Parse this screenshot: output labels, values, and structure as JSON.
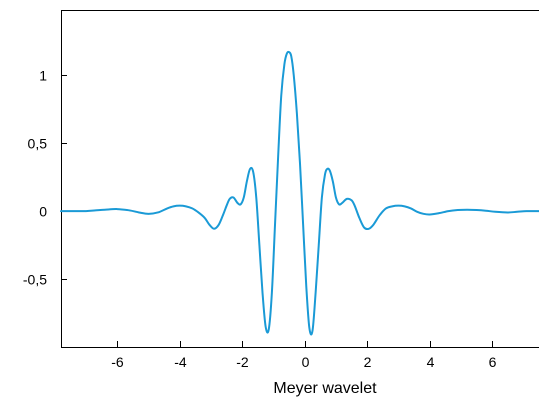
{
  "chart_data": {
    "type": "line",
    "title": "",
    "xlabel": "Meyer wavelet",
    "ylabel": "",
    "xlim": [
      -7.8,
      7.5
    ],
    "ylim": [
      -1.0,
      1.48
    ],
    "x_ticks": [
      -6,
      -4,
      -2,
      0,
      2,
      4,
      6
    ],
    "x_tick_labels": [
      "-6",
      "-4",
      "-2",
      "0",
      "2",
      "4",
      "6"
    ],
    "y_ticks": [
      -0.5,
      0,
      0.5,
      1
    ],
    "y_tick_labels": [
      "-0,5",
      "0",
      "0,5",
      "1"
    ],
    "grid": false,
    "legend": "none",
    "line_color": "#1a9ad6",
    "series": [
      {
        "x": [
          -7.8,
          -7.5,
          -7.0,
          -6.7,
          -6.4,
          -6.0,
          -5.6,
          -5.3,
          -5.0,
          -4.7,
          -4.4,
          -4.2,
          -4.0,
          -3.8,
          -3.6,
          -3.4,
          -3.2,
          -3.05,
          -2.9,
          -2.75,
          -2.6,
          -2.5,
          -2.4,
          -2.28,
          -2.15,
          -2.05,
          -1.95,
          -1.85,
          -1.75,
          -1.65,
          -1.55,
          -1.45,
          -1.35,
          -1.25,
          -1.15,
          -1.05,
          -0.95,
          -0.85,
          -0.75,
          -0.65,
          -0.57,
          -0.5,
          -0.43,
          -0.35,
          -0.25,
          -0.15,
          -0.05,
          0.05,
          0.15,
          0.25,
          0.35,
          0.45,
          0.55,
          0.65,
          0.72,
          0.8,
          0.9,
          1.0,
          1.1,
          1.2,
          1.35,
          1.5,
          1.6,
          1.75,
          1.9,
          2.05,
          2.2,
          2.4,
          2.6,
          2.8,
          3.0,
          3.2,
          3.4,
          3.6,
          3.8,
          4.0,
          4.3,
          4.6,
          4.9,
          5.2,
          5.5,
          5.8,
          6.1,
          6.5,
          6.8,
          7.1,
          7.5
        ],
        "y": [
          0.0,
          0.0,
          0.0,
          0.005,
          0.01,
          0.015,
          0.005,
          -0.01,
          -0.02,
          -0.01,
          0.02,
          0.035,
          0.04,
          0.035,
          0.02,
          -0.01,
          -0.05,
          -0.1,
          -0.13,
          -0.1,
          -0.02,
          0.04,
          0.09,
          0.1,
          0.06,
          0.05,
          0.1,
          0.22,
          0.31,
          0.29,
          0.1,
          -0.25,
          -0.6,
          -0.85,
          -0.87,
          -0.6,
          -0.1,
          0.4,
          0.85,
          1.08,
          1.16,
          1.17,
          1.14,
          1.0,
          0.72,
          0.35,
          -0.1,
          -0.55,
          -0.86,
          -0.88,
          -0.6,
          -0.25,
          0.1,
          0.27,
          0.31,
          0.3,
          0.22,
          0.1,
          0.05,
          0.06,
          0.09,
          0.08,
          0.04,
          -0.05,
          -0.12,
          -0.13,
          -0.1,
          -0.03,
          0.02,
          0.035,
          0.04,
          0.035,
          0.02,
          -0.005,
          -0.02,
          -0.025,
          -0.015,
          0.0,
          0.008,
          0.01,
          0.008,
          0.003,
          -0.005,
          -0.01,
          -0.005,
          0.0,
          0.0
        ]
      }
    ]
  }
}
